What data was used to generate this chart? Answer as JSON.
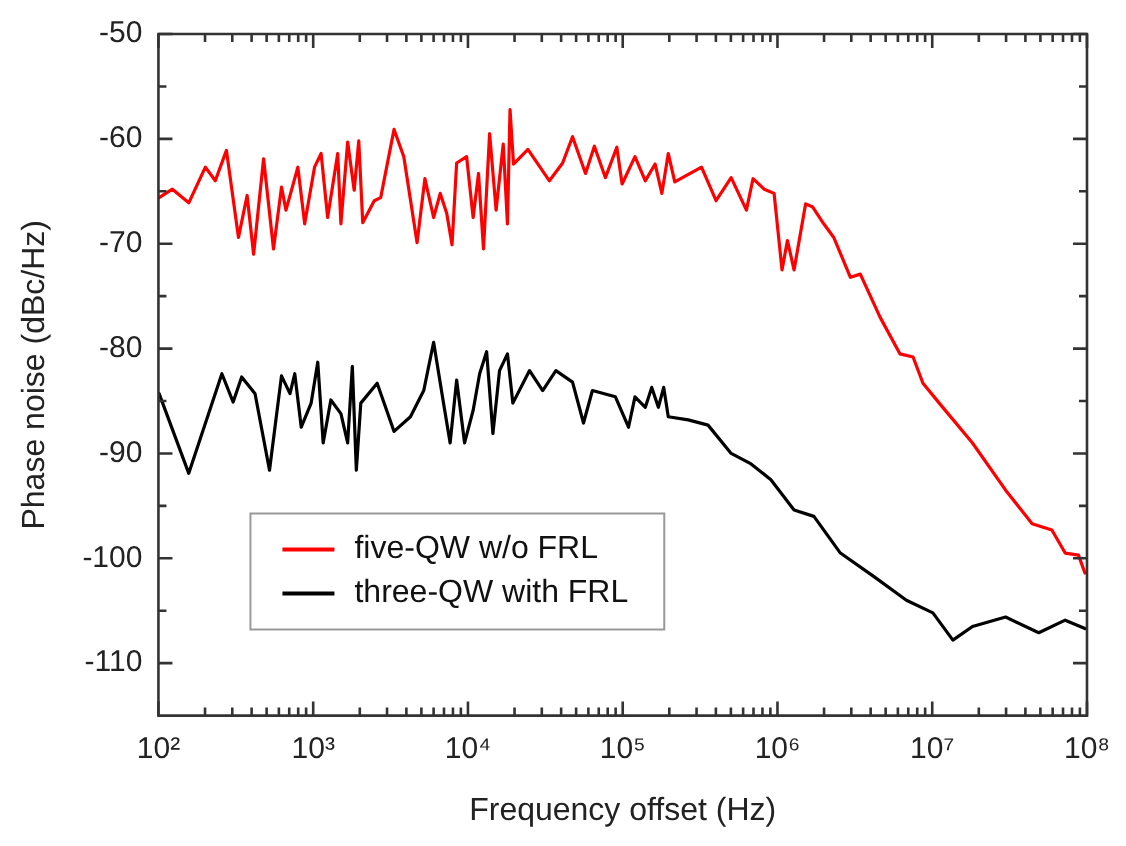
{
  "chart_data": {
    "type": "line",
    "xlabel": "Frequency offset (Hz)",
    "ylabel": "Phase noise (dBc/Hz)",
    "log": "x",
    "marker": "none",
    "legend": "bottom left",
    "xlim": [
      100,
      100000000
    ],
    "xticks": [
      {
        "value": 100,
        "label": "10²"
      },
      {
        "value": 200,
        "label": null
      },
      {
        "value": 300,
        "label": null
      },
      {
        "value": 400,
        "label": null
      },
      {
        "value": 500,
        "label": null
      },
      {
        "value": 600,
        "label": null
      },
      {
        "value": 700,
        "label": null
      },
      {
        "value": 800,
        "label": null
      },
      {
        "value": 900,
        "label": null
      },
      {
        "value": 1000,
        "label": "10³"
      },
      {
        "value": 2000,
        "label": null
      },
      {
        "value": 3000,
        "label": null
      },
      {
        "value": 4000,
        "label": null
      },
      {
        "value": 5000,
        "label": null
      },
      {
        "value": 6000,
        "label": null
      },
      {
        "value": 7000,
        "label": null
      },
      {
        "value": 8000,
        "label": null
      },
      {
        "value": 9000,
        "label": null
      },
      {
        "value": 10000,
        "label": "10⁴"
      },
      {
        "value": 20000,
        "label": null
      },
      {
        "value": 30000,
        "label": null
      },
      {
        "value": 40000,
        "label": null
      },
      {
        "value": 50000,
        "label": null
      },
      {
        "value": 60000,
        "label": null
      },
      {
        "value": 70000,
        "label": null
      },
      {
        "value": 80000,
        "label": null
      },
      {
        "value": 90000,
        "label": null
      },
      {
        "value": 100000,
        "label": "10⁵"
      },
      {
        "value": 200000,
        "label": null
      },
      {
        "value": 300000,
        "label": null
      },
      {
        "value": 400000,
        "label": null
      },
      {
        "value": 500000,
        "label": null
      },
      {
        "value": 600000,
        "label": null
      },
      {
        "value": 700000,
        "label": null
      },
      {
        "value": 800000,
        "label": null
      },
      {
        "value": 900000,
        "label": null
      },
      {
        "value": 1000000,
        "label": "10⁶"
      },
      {
        "value": 2000000,
        "label": null
      },
      {
        "value": 3000000,
        "label": null
      },
      {
        "value": 4000000,
        "label": null
      },
      {
        "value": 5000000,
        "label": null
      },
      {
        "value": 6000000,
        "label": null
      },
      {
        "value": 7000000,
        "label": null
      },
      {
        "value": 8000000,
        "label": null
      },
      {
        "value": 9000000,
        "label": null
      },
      {
        "value": 10000000,
        "label": "10⁷"
      },
      {
        "value": 20000000,
        "label": null
      },
      {
        "value": 30000000,
        "label": null
      },
      {
        "value": 40000000,
        "label": null
      },
      {
        "value": 50000000,
        "label": null
      },
      {
        "value": 60000000,
        "label": null
      },
      {
        "value": 70000000,
        "label": null
      },
      {
        "value": 80000000,
        "label": null
      },
      {
        "value": 90000000,
        "label": null
      },
      {
        "value": 100000000,
        "label": "10⁸"
      }
    ],
    "ylim": [
      -115,
      -50
    ],
    "yticks": [
      -110,
      {
        "value": -105,
        "label": null
      },
      -100,
      {
        "value": -95,
        "label": null
      },
      -90,
      {
        "value": -85,
        "label": null
      },
      -80,
      {
        "value": -75,
        "label": null
      },
      -70,
      {
        "value": -65,
        "label": null
      },
      -60,
      {
        "value": -55,
        "label": null
      },
      -50
    ],
    "series": [
      {
        "name": "five-QW w/o FRL",
        "color": "#ff0000",
        "x": [
          101,
          123,
          157,
          201,
          233,
          275,
          329,
          374,
          412,
          478,
          554,
          624,
          667,
          796,
          881,
          1020,
          1125,
          1240,
          1440,
          1510,
          1670,
          1840,
          1970,
          2090,
          2480,
          2730,
          3330,
          3850,
          4690,
          5270,
          6000,
          6620,
          7290,
          7890,
          8450,
          9800,
          10800,
          11700,
          12600,
          13800,
          15200,
          16900,
          18000,
          18700,
          19700,
          24400,
          33600,
          40900,
          47400,
          57500,
          65600,
          77300,
          91600,
          99100,
          120000,
          140000,
          162000,
          179000,
          197000,
          217000,
          323000,
          401000,
          502000,
          630000,
          695000,
          820000,
          951000,
          1070000,
          1160000,
          1280000,
          1520000,
          1690000,
          1990000,
          2310000,
          2960000,
          3430000,
          4600000,
          6180000,
          7520000,
          8710000,
          11100000,
          18200000,
          29800000,
          44200000,
          59300000,
          72300000,
          88100000,
          97000000
        ],
        "values": [
          -65.6,
          -64.8,
          -66.1,
          -62.7,
          -64,
          -61.1,
          -69.4,
          -65.4,
          -71,
          -61.9,
          -70.5,
          -64.6,
          -66.8,
          -62.7,
          -68.1,
          -62.7,
          -61.4,
          -67.5,
          -61.4,
          -68.1,
          -60.3,
          -64.9,
          -60.2,
          -68,
          -65.9,
          -65.6,
          -59.1,
          -61.7,
          -69.9,
          -63.8,
          -67.5,
          -65.2,
          -67.1,
          -70.1,
          -62.3,
          -61.7,
          -67.5,
          -63.3,
          -70.5,
          -59.5,
          -66.8,
          -60.5,
          -68.1,
          -57.2,
          -62.4,
          -61,
          -64,
          -62.3,
          -59.8,
          -63.3,
          -60.7,
          -63.7,
          -60.8,
          -64.3,
          -61.7,
          -64,
          -62.4,
          -65.2,
          -61.4,
          -64.1,
          -62.7,
          -65.9,
          -63.7,
          -66.8,
          -63.8,
          -64.8,
          -65.2,
          -72.5,
          -69.7,
          -72.5,
          -66.2,
          -66.5,
          -68.1,
          -69.4,
          -73.2,
          -72.9,
          -77,
          -80.5,
          -80.8,
          -83.3,
          -85.2,
          -89,
          -93.5,
          -96.7,
          -97.3,
          -99.5,
          -99.7,
          -101.4
        ]
      },
      {
        "name": "three-QW with FRL",
        "color": "#000000",
        "x": [
          101,
          157,
          257,
          304,
          345,
          421,
          522,
          624,
          708,
          760,
          837,
          970,
          1070,
          1160,
          1300,
          1510,
          1670,
          1790,
          1900,
          2030,
          2590,
          3330,
          4250,
          5180,
          6000,
          6950,
          7670,
          8450,
          9510,
          10800,
          11900,
          13200,
          14500,
          16000,
          18000,
          19500,
          25000,
          30400,
          37000,
          47400,
          55800,
          63700,
          89700,
          109000,
          120000,
          140000,
          154000,
          170000,
          184000,
          197000,
          265000,
          356000,
          502000,
          675000,
          907000,
          1280000,
          1720000,
          2550000,
          4160000,
          6810000,
          10100000,
          13600000,
          18200000,
          29800000,
          48800000,
          72300000,
          97000000
        ],
        "values": [
          -84.3,
          -91.9,
          -82.4,
          -85.1,
          -82.7,
          -84.3,
          -91.6,
          -82.6,
          -84.3,
          -82.4,
          -87.5,
          -85.2,
          -81.3,
          -89,
          -84.9,
          -86.2,
          -89,
          -81.7,
          -91.6,
          -85.2,
          -83.3,
          -87.9,
          -86.5,
          -84,
          -79.4,
          -85.2,
          -89,
          -83,
          -89,
          -85.9,
          -82.4,
          -80.3,
          -88.1,
          -82.1,
          -80.5,
          -85.2,
          -82.1,
          -84,
          -82.1,
          -83.2,
          -87.1,
          -84,
          -84.6,
          -87.5,
          -84.6,
          -85.6,
          -83.7,
          -85.6,
          -83.7,
          -86.5,
          -86.8,
          -87.3,
          -90,
          -91,
          -92.5,
          -95.4,
          -96,
          -99.5,
          -101.7,
          -104,
          -105.2,
          -107.8,
          -106.5,
          -105.6,
          -107.1,
          -105.9,
          -106.7
        ]
      }
    ]
  }
}
